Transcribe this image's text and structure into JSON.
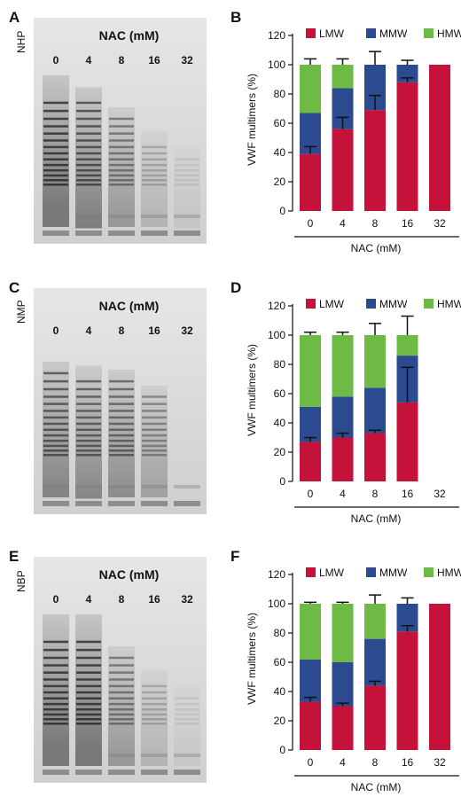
{
  "colors": {
    "LMW": "#c4123a",
    "MMW": "#2b4a8f",
    "HMW": "#6dbb45",
    "axis": "#111111",
    "gel_bg": "#d9d9d9",
    "band": "#1e1e1e"
  },
  "panels": [
    {
      "gel": {
        "letter": "A",
        "sample": "NHP",
        "title": "NAC (mM)",
        "lanes": [
          "0",
          "4",
          "8",
          "16",
          "32"
        ],
        "intensity": [
          1.0,
          0.85,
          0.6,
          0.3,
          0.12
        ]
      },
      "chart": {
        "letter": "B"
      }
    },
    {
      "gel": {
        "letter": "C",
        "sample": "NMP",
        "title": "NAC (mM)",
        "lanes": [
          "0",
          "4",
          "8",
          "16",
          "32"
        ],
        "intensity": [
          0.8,
          0.75,
          0.7,
          0.5,
          0.0
        ]
      },
      "chart": {
        "letter": "D"
      }
    },
    {
      "gel": {
        "letter": "E",
        "sample": "NBP",
        "title": "NAC (mM)",
        "lanes": [
          "0",
          "4",
          "8",
          "16",
          "32"
        ],
        "intensity": [
          1.0,
          1.0,
          0.6,
          0.3,
          0.1
        ]
      },
      "chart": {
        "letter": "F"
      }
    }
  ],
  "chart_data": [
    {
      "type": "bar",
      "stacked": true,
      "categories": [
        "0",
        "4",
        "8",
        "16",
        "32"
      ],
      "series": [
        {
          "name": "LMW",
          "values": [
            39,
            56,
            69,
            88,
            100
          ]
        },
        {
          "name": "MMW",
          "values": [
            28,
            28,
            31,
            12,
            0
          ]
        },
        {
          "name": "HMW",
          "values": [
            33,
            16,
            0,
            0,
            0
          ]
        }
      ],
      "error_bars": {
        "LMW": [
          5,
          8,
          10,
          3,
          null
        ],
        "total": [
          4,
          4,
          9,
          3,
          null
        ]
      },
      "xlabel": "NAC (mM)",
      "ylabel": "VWF multimers (%)",
      "ylim": [
        0,
        120
      ],
      "yticks": [
        0,
        20,
        40,
        60,
        80,
        100,
        120
      ],
      "legend": "top"
    },
    {
      "type": "bar",
      "stacked": true,
      "categories": [
        "0",
        "4",
        "8",
        "16",
        "32"
      ],
      "series": [
        {
          "name": "LMW",
          "values": [
            27,
            30,
            33,
            54,
            0
          ]
        },
        {
          "name": "MMW",
          "values": [
            24,
            28,
            31,
            32,
            0
          ]
        },
        {
          "name": "HMW",
          "values": [
            49,
            42,
            36,
            14,
            0
          ]
        }
      ],
      "error_bars": {
        "LMW": [
          3,
          3,
          2,
          24,
          null
        ],
        "total": [
          2,
          2,
          8,
          13,
          null
        ]
      },
      "xlabel": "NAC (mM)",
      "ylabel": "VWF multimers (%)",
      "ylim": [
        0,
        120
      ],
      "yticks": [
        0,
        20,
        40,
        60,
        80,
        100,
        120
      ],
      "legend": "top"
    },
    {
      "type": "bar",
      "stacked": true,
      "categories": [
        "0",
        "4",
        "8",
        "16",
        "32"
      ],
      "series": [
        {
          "name": "LMW",
          "values": [
            33,
            30,
            44,
            81,
            100
          ]
        },
        {
          "name": "MMW",
          "values": [
            29,
            30,
            32,
            19,
            0
          ]
        },
        {
          "name": "HMW",
          "values": [
            38,
            40,
            24,
            0,
            0
          ]
        }
      ],
      "error_bars": {
        "LMW": [
          3,
          2,
          3,
          4,
          null
        ],
        "total": [
          1,
          1,
          6,
          4,
          null
        ]
      },
      "xlabel": "NAC (mM)",
      "ylabel": "VWF multimers (%)",
      "ylim": [
        0,
        120
      ],
      "yticks": [
        0,
        20,
        40,
        60,
        80,
        100,
        120
      ],
      "legend": "top"
    }
  ]
}
